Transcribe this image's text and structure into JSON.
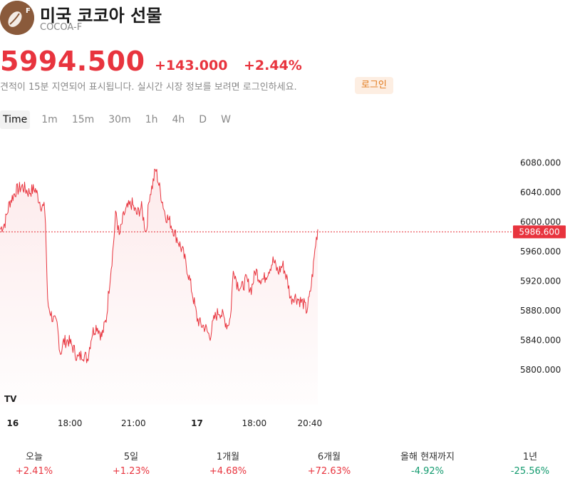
{
  "header": {
    "title": "미국 코코아 선물",
    "ticker": "COCOA-F",
    "logo_letter": "F",
    "logo_icon": "cocoa-bean-icon"
  },
  "quote": {
    "price": "5994.500",
    "change": "+143.000",
    "change_pct": "+2.44%",
    "delay_note": "견적이 15분 지연되어 표시됩니다. 실시간 시장 정보를 보려면 로그인하세요.",
    "login_label": "로그인"
  },
  "range_tabs": [
    "Time",
    "1m",
    "15m",
    "30m",
    "1h",
    "4h",
    "D",
    "W"
  ],
  "range_active_index": 0,
  "colors": {
    "up": "#e8343e",
    "down": "#129a6e",
    "accent_login": "#e27a1c",
    "login_bg": "#fdeee2"
  },
  "chart_data": {
    "type": "line",
    "y_tick_labels": [
      "6080.000",
      "6040.000",
      "6000.000",
      "5960.000",
      "5920.000",
      "5880.000",
      "5840.000",
      "5800.000"
    ],
    "y_ticks": [
      6080,
      6040,
      6000,
      5960,
      5920,
      5880,
      5840,
      5800
    ],
    "ylim": [
      5778,
      6088
    ],
    "x_tick_labels": [
      {
        "label": "16",
        "bold": true,
        "t": 0.04
      },
      {
        "label": "18:00",
        "bold": false,
        "t": 0.22
      },
      {
        "label": "21:00",
        "bold": false,
        "t": 0.42
      },
      {
        "label": "17",
        "bold": true,
        "t": 0.62
      },
      {
        "label": "18:00",
        "bold": false,
        "t": 0.8
      },
      {
        "label": "20:40",
        "bold": false,
        "t": 0.975
      }
    ],
    "current_value_label": "5986.600",
    "current_value": 5986.6,
    "grid": false,
    "series": [
      {
        "values": [
          [
            0.0,
            5990
          ],
          [
            0.015,
            5998
          ],
          [
            0.03,
            6026
          ],
          [
            0.05,
            6042
          ],
          [
            0.07,
            6048
          ],
          [
            0.09,
            6040
          ],
          [
            0.11,
            6045
          ],
          [
            0.13,
            6022
          ],
          [
            0.142,
            6017
          ],
          [
            0.15,
            5890
          ],
          [
            0.165,
            5870
          ],
          [
            0.18,
            5860
          ],
          [
            0.19,
            5822
          ],
          [
            0.2,
            5838
          ],
          [
            0.215,
            5840
          ],
          [
            0.23,
            5830
          ],
          [
            0.245,
            5815
          ],
          [
            0.26,
            5822
          ],
          [
            0.275,
            5815
          ],
          [
            0.29,
            5850
          ],
          [
            0.305,
            5860
          ],
          [
            0.32,
            5845
          ],
          [
            0.335,
            5870
          ],
          [
            0.345,
            5920
          ],
          [
            0.355,
            5960
          ],
          [
            0.365,
            6015
          ],
          [
            0.375,
            5980
          ],
          [
            0.39,
            6010
          ],
          [
            0.4,
            6018
          ],
          [
            0.415,
            6025
          ],
          [
            0.43,
            6010
          ],
          [
            0.445,
            6020
          ],
          [
            0.46,
            5985
          ],
          [
            0.47,
            6035
          ],
          [
            0.48,
            6050
          ],
          [
            0.49,
            6072
          ],
          [
            0.505,
            6040
          ],
          [
            0.52,
            6010
          ],
          [
            0.535,
            6000
          ],
          [
            0.545,
            5990
          ],
          [
            0.56,
            5975
          ],
          [
            0.575,
            5960
          ],
          [
            0.59,
            5935
          ],
          [
            0.605,
            5905
          ],
          [
            0.62,
            5870
          ],
          [
            0.63,
            5862
          ],
          [
            0.645,
            5858
          ],
          [
            0.66,
            5845
          ],
          [
            0.675,
            5870
          ],
          [
            0.69,
            5880
          ],
          [
            0.705,
            5870
          ],
          [
            0.715,
            5860
          ],
          [
            0.725,
            5870
          ],
          [
            0.735,
            5940
          ],
          [
            0.745,
            5918
          ],
          [
            0.76,
            5910
          ],
          [
            0.775,
            5922
          ],
          [
            0.79,
            5908
          ],
          [
            0.805,
            5935
          ],
          [
            0.815,
            5925
          ],
          [
            0.83,
            5922
          ],
          [
            0.845,
            5935
          ],
          [
            0.86,
            5948
          ],
          [
            0.875,
            5932
          ],
          [
            0.89,
            5942
          ],
          [
            0.905,
            5920
          ],
          [
            0.915,
            5895
          ],
          [
            0.925,
            5900
          ],
          [
            0.94,
            5895
          ],
          [
            0.955,
            5890
          ],
          [
            0.965,
            5880
          ],
          [
            0.975,
            5900
          ],
          [
            0.985,
            5935
          ],
          [
            0.993,
            5970
          ],
          [
            1.0,
            5990
          ]
        ]
      }
    ]
  },
  "stats": [
    {
      "label": "오늘",
      "value": "+2.41%",
      "dir": "up"
    },
    {
      "label": "5일",
      "value": "+1.23%",
      "dir": "up"
    },
    {
      "label": "1개월",
      "value": "+4.68%",
      "dir": "up"
    },
    {
      "label": "6개월",
      "value": "+72.63%",
      "dir": "up"
    },
    {
      "label": "올해 현재까지",
      "value": "-4.92%",
      "dir": "down"
    },
    {
      "label": "1년",
      "value": "-25.56%",
      "dir": "down"
    }
  ],
  "chart_badge": "TV"
}
